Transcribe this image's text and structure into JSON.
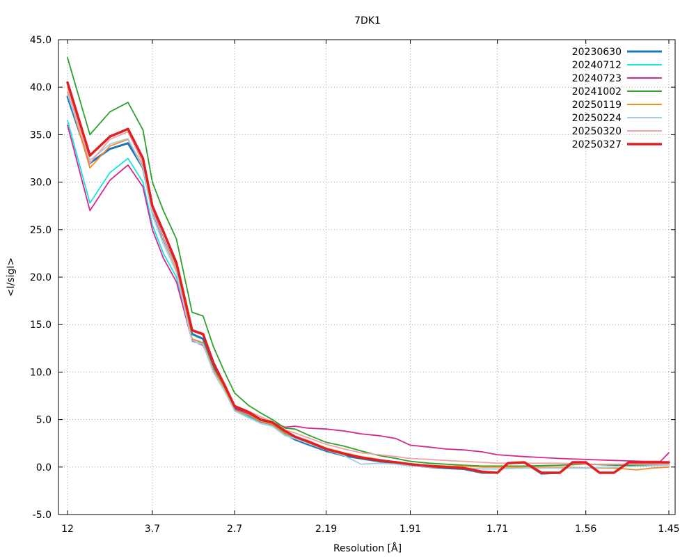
{
  "chart_data": {
    "type": "line",
    "title": "7DK1",
    "xlabel": "Resolution [Å]",
    "ylabel": "<I/sigI>",
    "x_tick_labels": [
      "12",
      "3.7",
      "2.7",
      "2.19",
      "1.91",
      "1.71",
      "1.56",
      "1.45"
    ],
    "y_tick_labels": [
      "-5.0",
      "0.0",
      "5.0",
      "10.0",
      "15.0",
      "20.0",
      "25.0",
      "30.0",
      "35.0",
      "40.0",
      "45.0"
    ],
    "ylim": [
      -5,
      45
    ],
    "x_scale": "1/d^2",
    "x_domain_resolution": [
      12,
      1.45
    ],
    "grid": true,
    "legend_position": "top-right",
    "series": [
      {
        "name": "20230630",
        "color": "#1f77b4",
        "points": [
          [
            12,
            39.0
          ],
          [
            6.4,
            32.0
          ],
          [
            5.0,
            33.5
          ],
          [
            4.3,
            34.1
          ],
          [
            3.9,
            31.5
          ],
          [
            3.7,
            27.0
          ],
          [
            3.5,
            24.0
          ],
          [
            3.3,
            21.0
          ],
          [
            3.1,
            14.0
          ],
          [
            2.98,
            13.5
          ],
          [
            2.88,
            10.5
          ],
          [
            2.78,
            8.5
          ],
          [
            2.7,
            6.2
          ],
          [
            2.6,
            5.5
          ],
          [
            2.52,
            4.8
          ],
          [
            2.45,
            4.5
          ],
          [
            2.38,
            3.5
          ],
          [
            2.33,
            2.9
          ],
          [
            2.27,
            2.4
          ],
          [
            2.19,
            1.7
          ],
          [
            2.12,
            1.2
          ],
          [
            2.06,
            0.9
          ],
          [
            2.0,
            0.6
          ],
          [
            1.95,
            0.4
          ],
          [
            1.91,
            0.2
          ],
          [
            1.86,
            0.0
          ],
          [
            1.82,
            -0.1
          ],
          [
            1.78,
            -0.2
          ],
          [
            1.74,
            -0.6
          ],
          [
            1.71,
            -0.6
          ],
          [
            1.69,
            0.4
          ],
          [
            1.66,
            0.5
          ],
          [
            1.63,
            -0.7
          ],
          [
            1.6,
            -0.6
          ],
          [
            1.58,
            0.5
          ],
          [
            1.56,
            0.5
          ],
          [
            1.54,
            -0.6
          ],
          [
            1.52,
            -0.6
          ],
          [
            1.5,
            0.5
          ],
          [
            1.48,
            0.5
          ],
          [
            1.45,
            0.5
          ]
        ]
      },
      {
        "name": "20240712",
        "color": "#17e3e3",
        "points": [
          [
            12,
            36.5
          ],
          [
            6.4,
            27.8
          ],
          [
            5.0,
            31.0
          ],
          [
            4.3,
            32.5
          ],
          [
            3.9,
            30.0
          ],
          [
            3.7,
            25.5
          ],
          [
            3.5,
            22.5
          ],
          [
            3.3,
            20.0
          ],
          [
            3.1,
            13.5
          ],
          [
            2.98,
            13.0
          ],
          [
            2.88,
            10.0
          ],
          [
            2.78,
            8.0
          ],
          [
            2.7,
            6.0
          ],
          [
            2.6,
            5.3
          ],
          [
            2.52,
            4.6
          ],
          [
            2.45,
            4.3
          ],
          [
            2.38,
            3.4
          ],
          [
            2.33,
            3.0
          ],
          [
            2.27,
            2.6
          ],
          [
            2.19,
            1.9
          ],
          [
            2.12,
            1.4
          ],
          [
            2.06,
            1.0
          ],
          [
            2.0,
            0.8
          ],
          [
            1.95,
            0.5
          ],
          [
            1.91,
            0.3
          ],
          [
            1.86,
            0.1
          ],
          [
            1.82,
            0.0
          ],
          [
            1.78,
            -0.1
          ],
          [
            1.74,
            -0.2
          ],
          [
            1.71,
            -0.2
          ],
          [
            1.66,
            -0.1
          ],
          [
            1.6,
            -0.1
          ],
          [
            1.56,
            -0.1
          ],
          [
            1.52,
            0.0
          ],
          [
            1.48,
            0.1
          ],
          [
            1.45,
            0.2
          ]
        ]
      },
      {
        "name": "20240723",
        "color": "#d6278c",
        "points": [
          [
            12,
            36.0
          ],
          [
            6.4,
            27.0
          ],
          [
            5.0,
            30.2
          ],
          [
            4.3,
            31.8
          ],
          [
            3.9,
            29.5
          ],
          [
            3.7,
            25.0
          ],
          [
            3.5,
            22.0
          ],
          [
            3.3,
            19.5
          ],
          [
            3.1,
            13.3
          ],
          [
            2.98,
            12.8
          ],
          [
            2.88,
            10.3
          ],
          [
            2.78,
            8.3
          ],
          [
            2.7,
            6.1
          ],
          [
            2.6,
            5.6
          ],
          [
            2.52,
            5.0
          ],
          [
            2.45,
            4.7
          ],
          [
            2.38,
            4.2
          ],
          [
            2.33,
            4.3
          ],
          [
            2.27,
            4.1
          ],
          [
            2.19,
            4.0
          ],
          [
            2.12,
            3.8
          ],
          [
            2.06,
            3.5
          ],
          [
            2.0,
            3.3
          ],
          [
            1.95,
            3.0
          ],
          [
            1.91,
            2.3
          ],
          [
            1.86,
            2.1
          ],
          [
            1.82,
            1.9
          ],
          [
            1.78,
            1.8
          ],
          [
            1.74,
            1.6
          ],
          [
            1.71,
            1.3
          ],
          [
            1.66,
            1.1
          ],
          [
            1.6,
            0.9
          ],
          [
            1.56,
            0.8
          ],
          [
            1.52,
            0.7
          ],
          [
            1.48,
            0.6
          ],
          [
            1.46,
            0.6
          ],
          [
            1.45,
            1.5
          ]
        ]
      },
      {
        "name": "20241002",
        "color": "#2ca02c",
        "points": [
          [
            12,
            43.1
          ],
          [
            6.4,
            35.0
          ],
          [
            5.0,
            37.4
          ],
          [
            4.3,
            38.4
          ],
          [
            3.9,
            35.5
          ],
          [
            3.7,
            30.0
          ],
          [
            3.5,
            27.0
          ],
          [
            3.3,
            24.0
          ],
          [
            3.1,
            16.3
          ],
          [
            2.98,
            15.9
          ],
          [
            2.88,
            12.7
          ],
          [
            2.78,
            10.0
          ],
          [
            2.7,
            7.8
          ],
          [
            2.6,
            6.5
          ],
          [
            2.52,
            5.7
          ],
          [
            2.45,
            5.0
          ],
          [
            2.38,
            4.1
          ],
          [
            2.33,
            4.0
          ],
          [
            2.27,
            3.4
          ],
          [
            2.19,
            2.6
          ],
          [
            2.12,
            2.2
          ],
          [
            2.06,
            1.7
          ],
          [
            2.0,
            1.2
          ],
          [
            1.95,
            0.9
          ],
          [
            1.91,
            0.6
          ],
          [
            1.86,
            0.4
          ],
          [
            1.82,
            0.3
          ],
          [
            1.78,
            0.2
          ],
          [
            1.74,
            0.1
          ],
          [
            1.71,
            0.1
          ],
          [
            1.66,
            0.1
          ],
          [
            1.6,
            0.2
          ],
          [
            1.56,
            0.3
          ],
          [
            1.52,
            0.2
          ],
          [
            1.48,
            0.2
          ],
          [
            1.45,
            0.3
          ]
        ]
      },
      {
        "name": "20250119",
        "color": "#f28c28",
        "points": [
          [
            12,
            39.5
          ],
          [
            6.4,
            31.5
          ],
          [
            5.0,
            33.8
          ],
          [
            4.3,
            34.5
          ],
          [
            3.9,
            31.7
          ],
          [
            3.7,
            27.0
          ],
          [
            3.5,
            24.0
          ],
          [
            3.3,
            20.8
          ],
          [
            3.1,
            13.5
          ],
          [
            2.98,
            13.1
          ],
          [
            2.88,
            10.3
          ],
          [
            2.78,
            8.3
          ],
          [
            2.7,
            6.0
          ],
          [
            2.6,
            5.5
          ],
          [
            2.52,
            4.8
          ],
          [
            2.45,
            4.5
          ],
          [
            2.38,
            3.5
          ],
          [
            2.33,
            3.2
          ],
          [
            2.27,
            2.8
          ],
          [
            2.19,
            2.0
          ],
          [
            2.12,
            1.5
          ],
          [
            2.06,
            1.1
          ],
          [
            2.0,
            0.8
          ],
          [
            1.95,
            0.5
          ],
          [
            1.91,
            0.3
          ],
          [
            1.86,
            0.2
          ],
          [
            1.82,
            0.1
          ],
          [
            1.78,
            0.1
          ],
          [
            1.74,
            0.0
          ],
          [
            1.71,
            0.0
          ],
          [
            1.66,
            0.0
          ],
          [
            1.6,
            0.0
          ],
          [
            1.56,
            -0.1
          ],
          [
            1.52,
            -0.1
          ],
          [
            1.49,
            -0.3
          ],
          [
            1.47,
            -0.1
          ],
          [
            1.45,
            0.0
          ]
        ]
      },
      {
        "name": "20250224",
        "color": "#a6cee3",
        "points": [
          [
            12,
            39.3
          ],
          [
            6.4,
            32.3
          ],
          [
            5.0,
            34.0
          ],
          [
            4.3,
            34.6
          ],
          [
            3.9,
            31.5
          ],
          [
            3.7,
            26.5
          ],
          [
            3.5,
            23.5
          ],
          [
            3.3,
            20.5
          ],
          [
            3.1,
            13.2
          ],
          [
            2.98,
            12.9
          ],
          [
            2.88,
            10.0
          ],
          [
            2.78,
            8.0
          ],
          [
            2.7,
            5.9
          ],
          [
            2.6,
            5.2
          ],
          [
            2.52,
            4.6
          ],
          [
            2.45,
            4.3
          ],
          [
            2.38,
            3.3
          ],
          [
            2.33,
            3.0
          ],
          [
            2.27,
            2.5
          ],
          [
            2.19,
            1.8
          ],
          [
            2.12,
            1.2
          ],
          [
            2.06,
            0.3
          ],
          [
            2.0,
            0.4
          ],
          [
            1.95,
            0.3
          ],
          [
            1.91,
            0.1
          ],
          [
            1.86,
            0.0
          ],
          [
            1.82,
            0.0
          ],
          [
            1.78,
            -0.1
          ],
          [
            1.74,
            -0.2
          ],
          [
            1.71,
            -0.2
          ],
          [
            1.66,
            -0.1
          ],
          [
            1.6,
            -0.1
          ],
          [
            1.56,
            -0.1
          ],
          [
            1.52,
            0.0
          ],
          [
            1.48,
            0.1
          ],
          [
            1.45,
            0.2
          ]
        ]
      },
      {
        "name": "20250320",
        "color": "#f4a0a8",
        "points": [
          [
            12,
            40.0
          ],
          [
            6.4,
            32.0
          ],
          [
            5.0,
            34.5
          ],
          [
            4.3,
            35.3
          ],
          [
            3.9,
            32.0
          ],
          [
            3.7,
            27.0
          ],
          [
            3.5,
            24.0
          ],
          [
            3.3,
            21.0
          ],
          [
            3.1,
            14.3
          ],
          [
            2.98,
            13.9
          ],
          [
            2.88,
            11.0
          ],
          [
            2.78,
            8.8
          ],
          [
            2.7,
            6.5
          ],
          [
            2.6,
            5.9
          ],
          [
            2.52,
            5.3
          ],
          [
            2.45,
            4.8
          ],
          [
            2.38,
            3.9
          ],
          [
            2.33,
            3.6
          ],
          [
            2.27,
            3.1
          ],
          [
            2.19,
            2.4
          ],
          [
            2.12,
            1.9
          ],
          [
            2.06,
            1.5
          ],
          [
            2.0,
            1.3
          ],
          [
            1.95,
            1.1
          ],
          [
            1.91,
            0.9
          ],
          [
            1.86,
            0.8
          ],
          [
            1.82,
            0.7
          ],
          [
            1.78,
            0.6
          ],
          [
            1.74,
            0.5
          ],
          [
            1.71,
            0.4
          ],
          [
            1.66,
            0.4
          ],
          [
            1.6,
            0.4
          ],
          [
            1.56,
            0.3
          ],
          [
            1.52,
            0.3
          ],
          [
            1.48,
            0.3
          ],
          [
            1.45,
            0.3
          ]
        ]
      },
      {
        "name": "20250327",
        "color": "#e02020",
        "points": [
          [
            12,
            40.5
          ],
          [
            6.4,
            32.8
          ],
          [
            5.0,
            34.8
          ],
          [
            4.3,
            35.6
          ],
          [
            3.9,
            32.5
          ],
          [
            3.7,
            27.5
          ],
          [
            3.5,
            24.8
          ],
          [
            3.3,
            21.5
          ],
          [
            3.1,
            14.4
          ],
          [
            2.98,
            14.0
          ],
          [
            2.88,
            11.0
          ],
          [
            2.78,
            8.6
          ],
          [
            2.7,
            6.4
          ],
          [
            2.6,
            5.8
          ],
          [
            2.52,
            5.0
          ],
          [
            2.45,
            4.7
          ],
          [
            2.38,
            3.8
          ],
          [
            2.33,
            3.2
          ],
          [
            2.27,
            2.7
          ],
          [
            2.19,
            1.9
          ],
          [
            2.12,
            1.4
          ],
          [
            2.06,
            1.0
          ],
          [
            2.0,
            0.7
          ],
          [
            1.95,
            0.5
          ],
          [
            1.91,
            0.3
          ],
          [
            1.86,
            0.1
          ],
          [
            1.82,
            0.0
          ],
          [
            1.78,
            -0.1
          ],
          [
            1.74,
            -0.5
          ],
          [
            1.71,
            -0.6
          ],
          [
            1.69,
            0.4
          ],
          [
            1.66,
            0.5
          ],
          [
            1.63,
            -0.6
          ],
          [
            1.6,
            -0.6
          ],
          [
            1.58,
            0.5
          ],
          [
            1.56,
            0.5
          ],
          [
            1.54,
            -0.6
          ],
          [
            1.52,
            -0.6
          ],
          [
            1.5,
            0.5
          ],
          [
            1.48,
            0.5
          ],
          [
            1.45,
            0.5
          ]
        ]
      }
    ]
  }
}
